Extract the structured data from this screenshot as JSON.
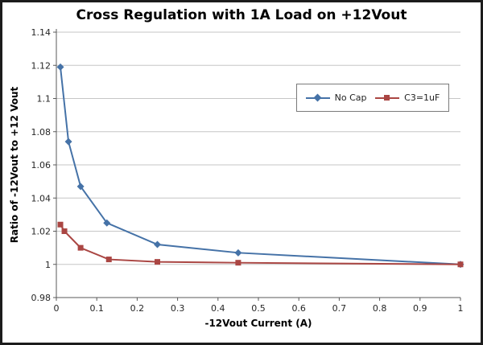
{
  "chart_data": {
    "type": "line",
    "title": "Cross Regulation with 1A Load on +12Vout",
    "xlabel": "-12Vout Current (A)",
    "ylabel": "Ratio of -12Vout to +12 Vout",
    "xlim": [
      0,
      1
    ],
    "ylim": [
      0.98,
      1.14
    ],
    "x_ticks": [
      0,
      0.1,
      0.2,
      0.3,
      0.4,
      0.5,
      0.6,
      0.7,
      0.8,
      0.9,
      1
    ],
    "y_ticks": [
      0.98,
      1,
      1.02,
      1.04,
      1.06,
      1.08,
      1.1,
      1.12,
      1.14
    ],
    "grid": "horizontal-gridlines",
    "legend_position": "inside-top-right",
    "colors": {
      "grid": "#c6c6c6",
      "axis": "#595959",
      "tick_text": "#262626",
      "legend_border": "#7a7a7a",
      "frame_border": "#1c1c1c"
    },
    "series": [
      {
        "name": "No Cap",
        "color": "#4572a7",
        "marker": "diamond",
        "points": [
          [
            0.01,
            1.119
          ],
          [
            0.03,
            1.074
          ],
          [
            0.06,
            1.047
          ],
          [
            0.125,
            1.025
          ],
          [
            0.25,
            1.012
          ],
          [
            0.45,
            1.007
          ],
          [
            1,
            1.0
          ]
        ]
      },
      {
        "name": "C3=1uF",
        "color": "#aa4643",
        "marker": "square",
        "points": [
          [
            0.01,
            1.024
          ],
          [
            0.02,
            1.02
          ],
          [
            0.06,
            1.01
          ],
          [
            0.13,
            1.003
          ],
          [
            0.25,
            1.0015
          ],
          [
            0.45,
            1.001
          ],
          [
            1,
            1.0
          ]
        ]
      }
    ]
  }
}
